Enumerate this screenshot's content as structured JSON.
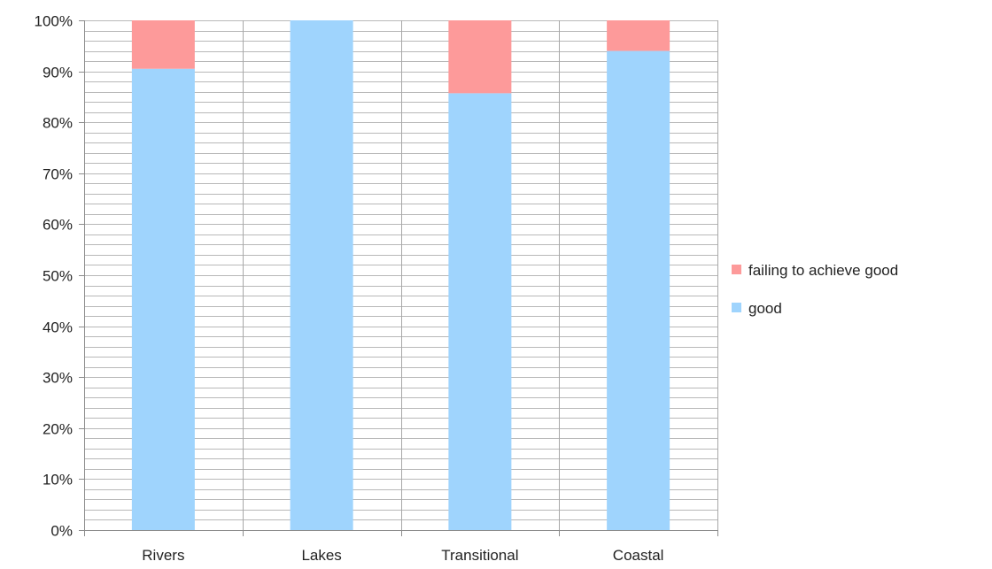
{
  "chart_data": {
    "type": "bar",
    "stacked": true,
    "normalized_percent": true,
    "categories": [
      "Rivers",
      "Lakes",
      "Transitional",
      "Coastal"
    ],
    "series": [
      {
        "name": "good",
        "values": [
          90.5,
          100,
          85.7,
          94
        ],
        "color": "#9fd4fd"
      },
      {
        "name": "failing to achieve good",
        "values": [
          9.5,
          0,
          14.3,
          6
        ],
        "color": "#fd9a9a"
      }
    ],
    "ylim": [
      0,
      100
    ],
    "y_ticks": [
      "0%",
      "10%",
      "20%",
      "30%",
      "40%",
      "50%",
      "60%",
      "70%",
      "80%",
      "90%",
      "100%"
    ],
    "y_minor_step": 2,
    "grid": true,
    "legend_position": "right",
    "legend_order": [
      "failing to achieve good",
      "good"
    ],
    "title": "",
    "xlabel": "",
    "ylabel": ""
  }
}
